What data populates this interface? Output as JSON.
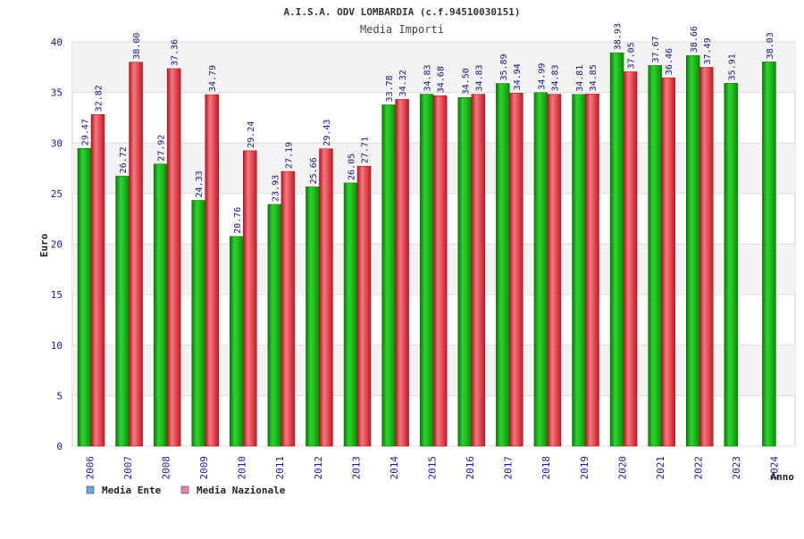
{
  "chart_data": {
    "type": "bar",
    "title": "A.I.S.A. ODV LOMBARDIA (c.f.94510030151)",
    "subtitle": "Media Importi",
    "xlabel": "Anno",
    "ylabel": "Euro",
    "ylim": [
      0,
      40
    ],
    "yticks": [
      0,
      5,
      10,
      15,
      20,
      25,
      30,
      35,
      40
    ],
    "grid": true,
    "legend_position": "bottom-left",
    "categories": [
      "2006",
      "2007",
      "2008",
      "2009",
      "2010",
      "2011",
      "2012",
      "2013",
      "2014",
      "2015",
      "2016",
      "2017",
      "2018",
      "2019",
      "2020",
      "2021",
      "2022",
      "2023",
      "2024"
    ],
    "series": [
      {
        "name": "Media Ente",
        "legend_color": "#6aa6e8",
        "bar_color": "#1ab21a",
        "values": [
          29.47,
          26.72,
          27.92,
          24.33,
          20.76,
          23.93,
          25.66,
          26.05,
          33.78,
          34.83,
          34.5,
          35.89,
          34.99,
          34.81,
          38.93,
          37.67,
          38.66,
          35.91,
          38.03
        ]
      },
      {
        "name": "Media Nazionale",
        "legend_color": "#e884b0",
        "bar_color": "#e8303c",
        "values": [
          32.82,
          38.0,
          37.36,
          34.79,
          29.24,
          27.19,
          29.43,
          27.71,
          34.32,
          34.68,
          34.83,
          34.94,
          34.83,
          34.85,
          37.05,
          36.46,
          37.49,
          null,
          null
        ]
      }
    ]
  }
}
